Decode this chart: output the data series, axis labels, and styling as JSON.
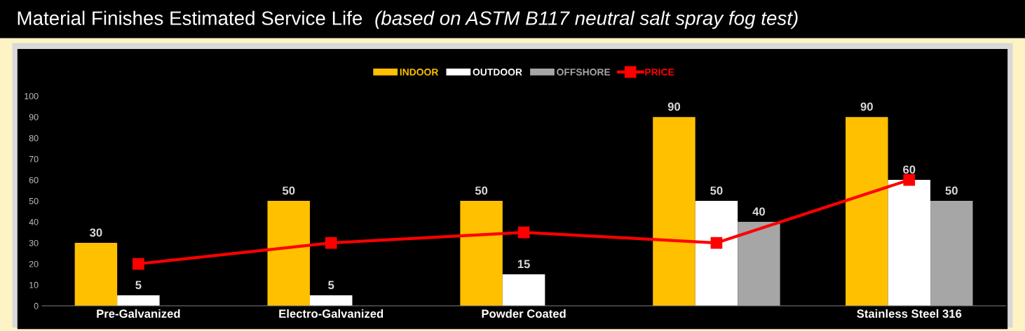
{
  "chart_data": {
    "type": "bar",
    "title": "Material Finishes Estimated Service Life",
    "subtitle": "(based on ASTM B117 neutral salt spray fog test)",
    "categories": [
      "Pre-Galvanized",
      "Electro-Galvanized",
      "Powder Coated",
      null,
      "Stainless Steel 316"
    ],
    "series": [
      {
        "name": "INDOOR",
        "color": "#ffc000",
        "values": [
          30,
          50,
          50,
          90,
          90
        ],
        "value_labels": [
          "30",
          "50",
          "50",
          "90",
          "90"
        ]
      },
      {
        "name": "OUTDOOR",
        "color": "#ffffff",
        "values": [
          5,
          5,
          15,
          50,
          60
        ],
        "value_labels": [
          "5",
          "5",
          "15",
          "50",
          "60"
        ]
      },
      {
        "name": "OFFSHORE",
        "color": "#a6a6a6",
        "values": [
          null,
          null,
          null,
          40,
          50
        ],
        "value_labels": [
          null,
          null,
          null,
          "40",
          "50"
        ]
      },
      {
        "name": "PRICE",
        "type": "line",
        "color": "#ff0000",
        "values": [
          20,
          30,
          35,
          30,
          60
        ],
        "marker": "square",
        "line_style": "solid"
      }
    ],
    "ylim": [
      0,
      100
    ],
    "yticks": [
      0,
      10,
      20,
      30,
      40,
      50,
      60,
      70,
      80,
      90,
      100
    ],
    "legend": "top"
  }
}
